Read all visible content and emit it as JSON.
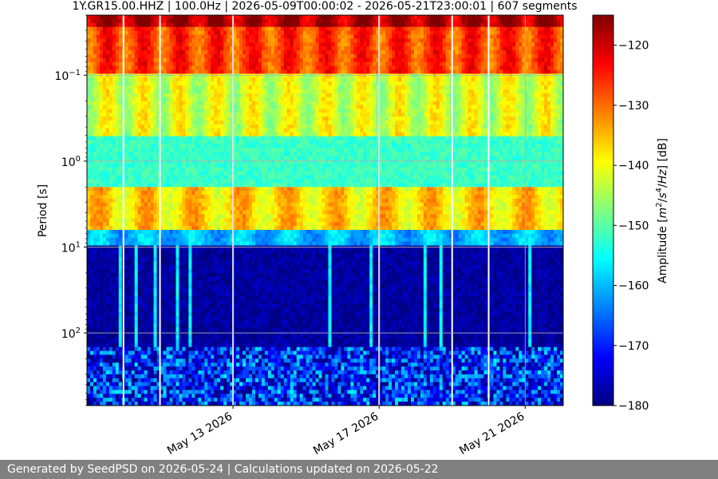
{
  "chart_data": {
    "type": "heatmap",
    "title": "1Y.GR15.00.HHZ | 100.0Hz | 2026-05-09T00:00:02 - 2026-05-21T23:00:01 | 607 segments",
    "ylabel": "Period [s]",
    "y_scale": "log",
    "y_inverted": true,
    "y_range": [
      0.02,
      700
    ],
    "y_ticks": [
      {
        "value": 0.1,
        "base": "10",
        "exp": "−1"
      },
      {
        "value": 1,
        "base": "10",
        "exp": "0"
      },
      {
        "value": 10,
        "base": "10",
        "exp": "1"
      },
      {
        "value": 100,
        "base": "10",
        "exp": "2"
      }
    ],
    "x_range": [
      "2026-05-09T00:00:00",
      "2026-05-22T01:00:00"
    ],
    "x_ticks": [
      {
        "value": "2026-05-13",
        "label": "May 13 2026"
      },
      {
        "value": "2026-05-17",
        "label": "May 17 2026"
      },
      {
        "value": "2026-05-21",
        "label": "May 21 2026"
      }
    ],
    "colorbar": {
      "label_parts": [
        "Amplitude [",
        "m",
        "2",
        "/",
        "s",
        "4",
        "/",
        "Hz",
        "] [dB]"
      ],
      "range": [
        -180,
        -115
      ],
      "ticks": [
        -120,
        -130,
        -140,
        -150,
        -160,
        -170,
        -180
      ],
      "tick_labels": [
        "−120",
        "−130",
        "−140",
        "−150",
        "−160",
        "−170",
        "−180"
      ],
      "colormap": "jet"
    },
    "grid": true,
    "gaps": [
      "2026-05-10T00:00",
      "2026-05-11T00:00",
      "2026-05-13T00:00",
      "2026-05-17T00:00",
      "2026-05-19T00:00",
      "2026-05-20T00:00"
    ],
    "bands": [
      {
        "period_min": 0.02,
        "period_max": 0.027,
        "level_db": -118,
        "description": "top strip, deep red"
      },
      {
        "period_min": 0.027,
        "period_max": 0.1,
        "level_db": -127,
        "description": "red/orange, daily highs near noon"
      },
      {
        "period_min": 0.1,
        "period_max": 0.5,
        "level_db": -142,
        "description": "yellow-green to cyan"
      },
      {
        "period_min": 0.5,
        "period_max": 2,
        "level_db": -152,
        "description": "cyan-green"
      },
      {
        "period_min": 2,
        "period_max": 6,
        "level_db": -138,
        "description": "microseism peak, orange/red blobs ~ every 1-1.5 days"
      },
      {
        "period_min": 6,
        "period_max": 10,
        "level_db": -160,
        "description": "cyan to blue"
      },
      {
        "period_min": 10,
        "period_max": 150,
        "level_db": -178,
        "description": "dark blue, occasional vertical cyan streaks"
      },
      {
        "period_min": 150,
        "period_max": 700,
        "level_db": -172,
        "description": "blue with cyan / yellow speckles at longest periods"
      }
    ]
  },
  "footer": {
    "text": "Generated by SeedPSD on 2026-05-24 | Calculations updated on 2026-05-22"
  }
}
